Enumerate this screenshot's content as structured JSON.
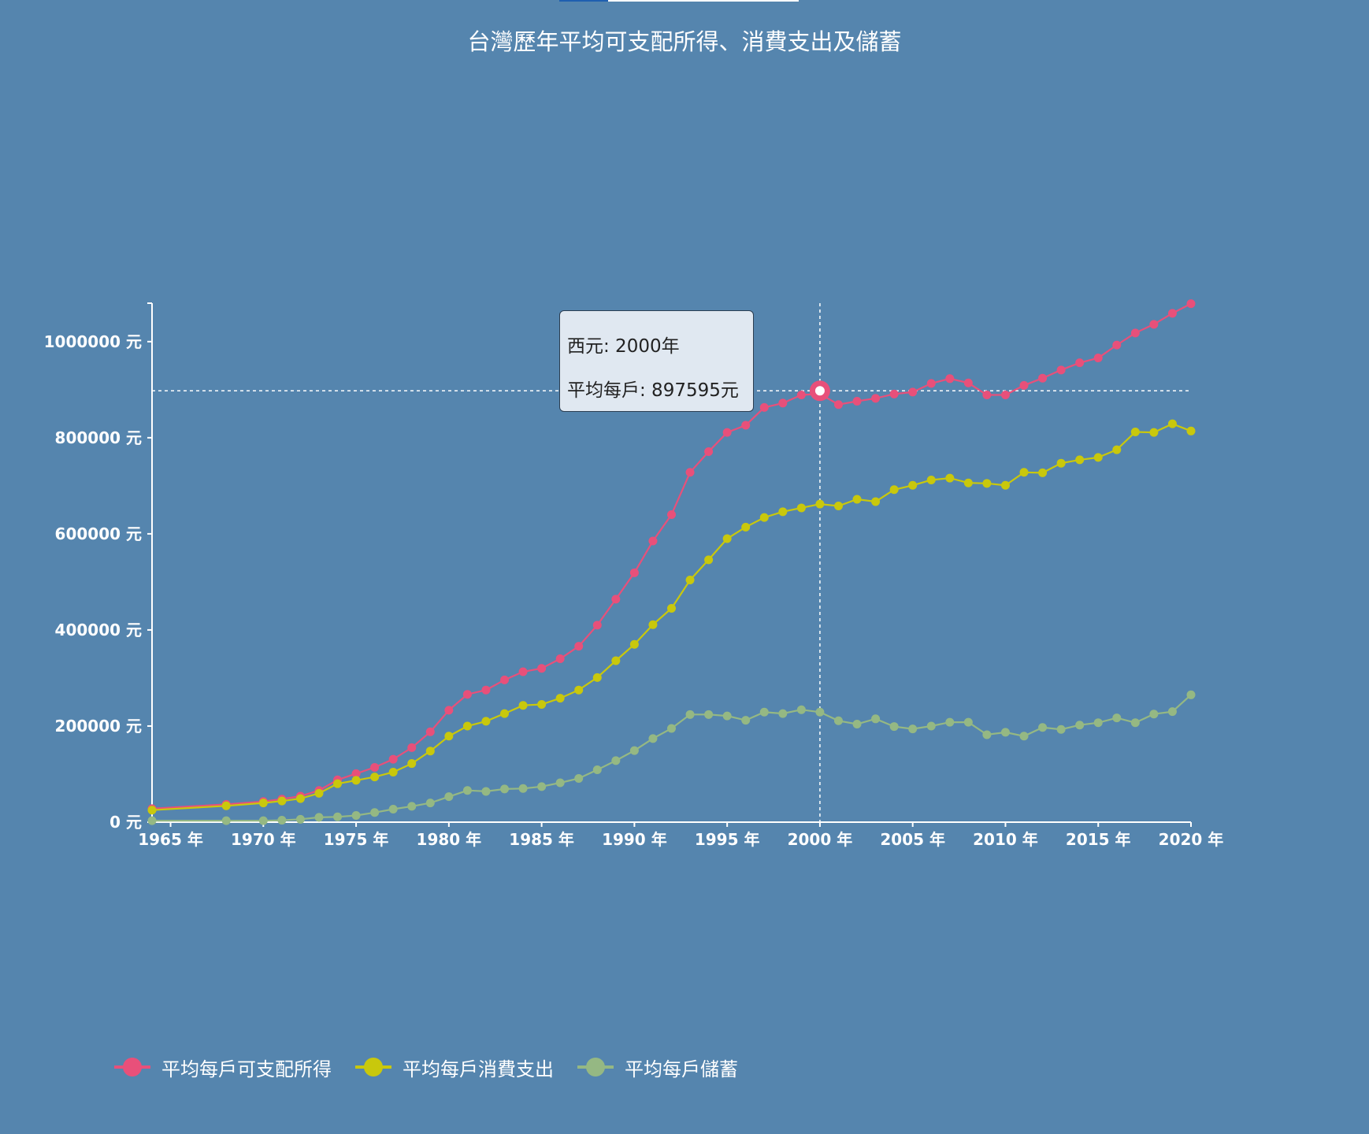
{
  "chart_data": {
    "type": "line",
    "title": "台灣歷年平均可支配所得、消費支出及儲蓄",
    "x_unit": "年",
    "y_unit": "元",
    "xlim": [
      1964,
      2020
    ],
    "ylim": [
      0,
      1080000
    ],
    "x_ticks": [
      1965,
      1970,
      1975,
      1980,
      1985,
      1990,
      1995,
      2000,
      2005,
      2010,
      2015,
      2020
    ],
    "y_ticks": [
      0,
      200000,
      400000,
      600000,
      800000,
      1000000
    ],
    "x_tick_labels": [
      "1965 年",
      "1970 年",
      "1975 年",
      "1980 年",
      "1985 年",
      "1990 年",
      "1995 年",
      "2000 年",
      "2005 年",
      "2010 年",
      "2015 年",
      "2020 年"
    ],
    "y_tick_labels": [
      "0 元",
      "200000 元",
      "400000 元",
      "600000 元",
      "800000 元",
      "1000000 元"
    ],
    "x": [
      1964,
      1968,
      1970,
      1971,
      1972,
      1973,
      1974,
      1975,
      1976,
      1977,
      1978,
      1979,
      1980,
      1981,
      1982,
      1983,
      1984,
      1985,
      1986,
      1987,
      1988,
      1989,
      1990,
      1991,
      1992,
      1993,
      1994,
      1995,
      1996,
      1997,
      1998,
      1999,
      2000,
      2001,
      2002,
      2003,
      2004,
      2005,
      2006,
      2007,
      2008,
      2009,
      2010,
      2011,
      2012,
      2013,
      2014,
      2015,
      2016,
      2017,
      2018,
      2019,
      2020
    ],
    "series": [
      {
        "name": "平均每戶可支配所得",
        "color": "#e8507a",
        "values": [
          28000,
          37000,
          43000,
          48000,
          54000,
          66000,
          88000,
          101000,
          114000,
          131000,
          155000,
          188000,
          233000,
          266000,
          275000,
          296000,
          313000,
          320000,
          340000,
          366000,
          410000,
          464000,
          519000,
          585000,
          640000,
          728000,
          771000,
          811000,
          826000,
          863000,
          872000,
          889000,
          891000,
          869000,
          876000,
          882000,
          891000,
          895000,
          913000,
          923000,
          914000,
          889000,
          889000,
          909000,
          924000,
          941000,
          956000,
          966000,
          993000,
          1018000,
          1036000,
          1059000,
          1079000
        ]
      },
      {
        "name": "平均每戶消費支出",
        "color": "#c9c80c",
        "values": [
          25000,
          34000,
          40000,
          44000,
          49000,
          60000,
          80000,
          87000,
          94000,
          104000,
          122000,
          148000,
          179000,
          200000,
          210000,
          226000,
          243000,
          245000,
          258000,
          275000,
          301000,
          336000,
          370000,
          411000,
          445000,
          504000,
          546000,
          590000,
          614000,
          634000,
          646000,
          654000,
          662000,
          658000,
          672000,
          667000,
          692000,
          701000,
          712000,
          716000,
          706000,
          705000,
          701000,
          728000,
          727000,
          747000,
          754000,
          759000,
          775000,
          812000,
          811000,
          829000,
          814000
        ]
      },
      {
        "name": "平均每戶儲蓄",
        "color": "#95b883",
        "values": [
          3000,
          3000,
          3000,
          4000,
          6000,
          10000,
          11000,
          14000,
          20000,
          27000,
          33000,
          40000,
          53000,
          66000,
          64000,
          69000,
          70000,
          74000,
          82000,
          91000,
          109000,
          128000,
          149000,
          174000,
          195000,
          224000,
          224000,
          221000,
          212000,
          229000,
          226000,
          234000,
          229000,
          211000,
          204000,
          215000,
          199000,
          194000,
          200000,
          208000,
          208000,
          182000,
          187000,
          179000,
          197000,
          193000,
          202000,
          207000,
          217000,
          207000,
          225000,
          230000,
          265000
        ]
      }
    ],
    "legend_position": "bottom-left",
    "crosshair": {
      "x": 2000,
      "y": 897595
    },
    "tooltip": {
      "year_label": "西元: 2000年",
      "value_label": "平均每戶: 897595元"
    }
  }
}
